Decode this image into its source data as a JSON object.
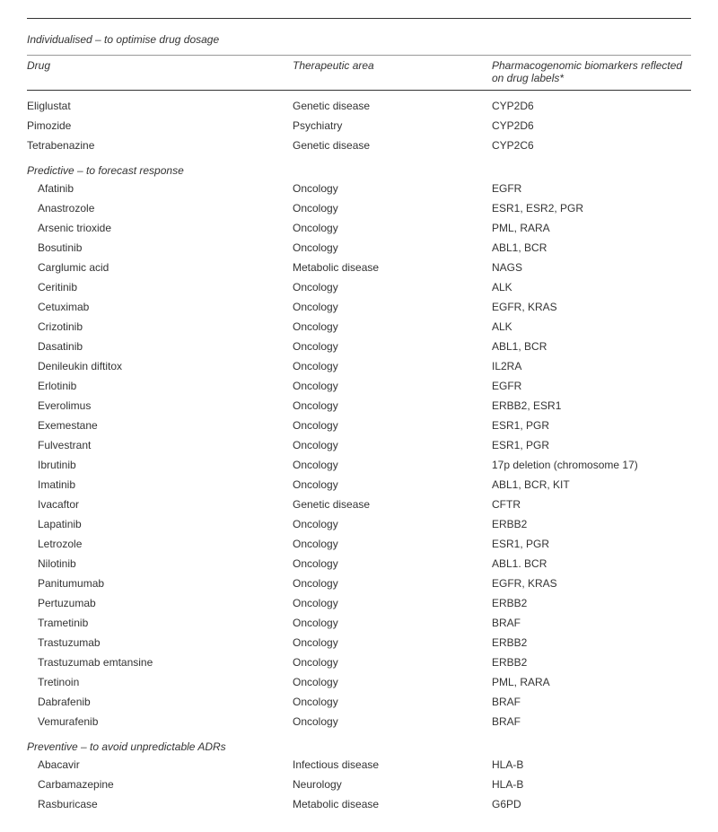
{
  "main_section_title": "Individualised – to optimise drug dosage",
  "headers": {
    "drug": "Drug",
    "area": "Therapeutic area",
    "biomarker": "Pharmacogenomic biomarkers reflected on drug labels*"
  },
  "section1_rows": [
    {
      "drug": "Eliglustat",
      "area": "Genetic disease",
      "biomarker": "CYP2D6"
    },
    {
      "drug": "Pimozide",
      "area": "Psychiatry",
      "biomarker": "CYP2D6"
    },
    {
      "drug": "Tetrabenazine",
      "area": "Genetic disease",
      "biomarker": "CYP2C6"
    }
  ],
  "section2_title": "Predictive – to forecast response",
  "section2_rows": [
    {
      "drug": "Afatinib",
      "area": "Oncology",
      "biomarker": "EGFR"
    },
    {
      "drug": "Anastrozole",
      "area": "Oncology",
      "biomarker": "ESR1, ESR2, PGR"
    },
    {
      "drug": "Arsenic trioxide",
      "area": "Oncology",
      "biomarker": "PML, RARA"
    },
    {
      "drug": "Bosutinib",
      "area": "Oncology",
      "biomarker": "ABL1, BCR"
    },
    {
      "drug": "Carglumic acid",
      "area": "Metabolic disease",
      "biomarker": "NAGS"
    },
    {
      "drug": "Ceritinib",
      "area": "Oncology",
      "biomarker": "ALK"
    },
    {
      "drug": "Cetuximab",
      "area": "Oncology",
      "biomarker": "EGFR, KRAS"
    },
    {
      "drug": "Crizotinib",
      "area": "Oncology",
      "biomarker": "ALK"
    },
    {
      "drug": "Dasatinib",
      "area": "Oncology",
      "biomarker": "ABL1, BCR"
    },
    {
      "drug": "Denileukin diftitox",
      "area": "Oncology",
      "biomarker": "IL2RA"
    },
    {
      "drug": "Erlotinib",
      "area": "Oncology",
      "biomarker": "EGFR"
    },
    {
      "drug": "Everolimus",
      "area": "Oncology",
      "biomarker": "ERBB2, ESR1"
    },
    {
      "drug": "Exemestane",
      "area": "Oncology",
      "biomarker": "ESR1, PGR"
    },
    {
      "drug": "Fulvestrant",
      "area": "Oncology",
      "biomarker": "ESR1, PGR"
    },
    {
      "drug": "Ibrutinib",
      "area": "Oncology",
      "biomarker": "17p deletion (chromosome 17)"
    },
    {
      "drug": "Imatinib",
      "area": "Oncology",
      "biomarker": "ABL1, BCR, KIT"
    },
    {
      "drug": "Ivacaftor",
      "area": "Genetic disease",
      "biomarker": "CFTR"
    },
    {
      "drug": "Lapatinib",
      "area": "Oncology",
      "biomarker": "ERBB2"
    },
    {
      "drug": "Letrozole",
      "area": "Oncology",
      "biomarker": "ESR1, PGR"
    },
    {
      "drug": "Nilotinib",
      "area": "Oncology",
      "biomarker": "ABL1. BCR"
    },
    {
      "drug": "Panitumumab",
      "area": "Oncology",
      "biomarker": "EGFR, KRAS"
    },
    {
      "drug": "Pertuzumab",
      "area": "Oncology",
      "biomarker": "ERBB2"
    },
    {
      "drug": "Trametinib",
      "area": "Oncology",
      "biomarker": "BRAF"
    },
    {
      "drug": "Trastuzumab",
      "area": "Oncology",
      "biomarker": "ERBB2"
    },
    {
      "drug": "Trastuzumab emtansine",
      "area": "Oncology",
      "biomarker": "ERBB2"
    },
    {
      "drug": "Tretinoin",
      "area": "Oncology",
      "biomarker": "PML, RARA"
    },
    {
      "drug": "Dabrafenib",
      "area": "Oncology",
      "biomarker": "BRAF"
    },
    {
      "drug": "Vemurafenib",
      "area": "Oncology",
      "biomarker": "BRAF"
    }
  ],
  "section3_title": "Preventive – to avoid unpredictable ADRs",
  "section3_rows": [
    {
      "drug": "Abacavir",
      "area": "Infectious disease",
      "biomarker": "HLA-B"
    },
    {
      "drug": "Carbamazepine",
      "area": "Neurology",
      "biomarker": "HLA-B"
    },
    {
      "drug": "Rasburicase",
      "area": "Metabolic disease",
      "biomarker": "G6PD"
    }
  ]
}
